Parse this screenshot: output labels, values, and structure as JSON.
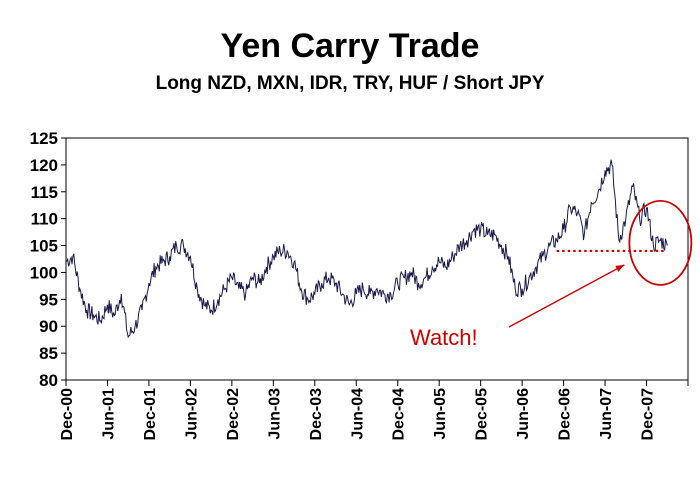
{
  "chart_data": {
    "type": "line",
    "title": "Yen Carry Trade",
    "subtitle": "Long NZD, MXN, IDR, TRY, HUF / Short JPY",
    "xlabel": "",
    "ylabel": "",
    "ylim": [
      80,
      125
    ],
    "yticks": [
      80,
      85,
      90,
      95,
      100,
      105,
      110,
      115,
      120,
      125
    ],
    "xlim": [
      "Dec-00",
      "Jun-08"
    ],
    "xticks": [
      "Dec-00",
      "Jun-01",
      "Dec-01",
      "Jun-02",
      "Dec-02",
      "Jun-03",
      "Dec-03",
      "Jun-04",
      "Dec-04",
      "Jun-05",
      "Dec-05",
      "Jun-06",
      "Dec-06",
      "Jun-07",
      "Dec-07"
    ],
    "grid": false,
    "legend": "none",
    "colors": {
      "series": "#1a1a4a",
      "annotation": "#cc0000"
    },
    "series": [
      {
        "name": "",
        "points": [
          [
            "Dec-00",
            102
          ],
          [
            "Jan-01",
            103
          ],
          [
            "Feb-01",
            97
          ],
          [
            "Mar-01",
            93
          ],
          [
            "Apr-01",
            92
          ],
          [
            "May-01",
            91
          ],
          [
            "Jun-01",
            94
          ],
          [
            "Jul-01",
            92
          ],
          [
            "Aug-01",
            96
          ],
          [
            "Sep-01",
            88
          ],
          [
            "Oct-01",
            90
          ],
          [
            "Nov-01",
            93
          ],
          [
            "Dec-01",
            98
          ],
          [
            "Jan-02",
            101
          ],
          [
            "Feb-02",
            102
          ],
          [
            "Mar-02",
            103
          ],
          [
            "Apr-02",
            105
          ],
          [
            "May-02",
            105
          ],
          [
            "Jun-02",
            103
          ],
          [
            "Jul-02",
            97
          ],
          [
            "Aug-02",
            94
          ],
          [
            "Sep-02",
            93
          ],
          [
            "Oct-02",
            95
          ],
          [
            "Nov-02",
            97
          ],
          [
            "Dec-02",
            99
          ],
          [
            "Jan-03",
            97
          ],
          [
            "Feb-03",
            96
          ],
          [
            "Mar-03",
            99
          ],
          [
            "Apr-03",
            98
          ],
          [
            "May-03",
            101
          ],
          [
            "Jun-03",
            103
          ],
          [
            "Jul-03",
            104
          ],
          [
            "Aug-03",
            104
          ],
          [
            "Sep-03",
            102
          ],
          [
            "Oct-03",
            97
          ],
          [
            "Nov-03",
            95
          ],
          [
            "Dec-03",
            96
          ],
          [
            "Jan-04",
            98
          ],
          [
            "Feb-04",
            99
          ],
          [
            "Mar-04",
            98
          ],
          [
            "Apr-04",
            96
          ],
          [
            "May-04",
            94
          ],
          [
            "Jun-04",
            96
          ],
          [
            "Jul-04",
            97
          ],
          [
            "Aug-04",
            96
          ],
          [
            "Sep-04",
            97
          ],
          [
            "Oct-04",
            96
          ],
          [
            "Nov-04",
            96
          ],
          [
            "Dec-04",
            98
          ],
          [
            "Jan-05",
            99
          ],
          [
            "Feb-05",
            100
          ],
          [
            "Mar-05",
            98
          ],
          [
            "Apr-05",
            99
          ],
          [
            "May-05",
            101
          ],
          [
            "Jun-05",
            102
          ],
          [
            "Jul-05",
            101
          ],
          [
            "Aug-05",
            103
          ],
          [
            "Sep-05",
            105
          ],
          [
            "Oct-05",
            106
          ],
          [
            "Nov-05",
            108
          ],
          [
            "Dec-05",
            108
          ],
          [
            "Jan-06",
            107
          ],
          [
            "Feb-06",
            107
          ],
          [
            "Mar-06",
            105
          ],
          [
            "Apr-06",
            103
          ],
          [
            "May-06",
            97
          ],
          [
            "Jun-06",
            97
          ],
          [
            "Jul-06",
            99
          ],
          [
            "Aug-06",
            101
          ],
          [
            "Sep-06",
            103
          ],
          [
            "Oct-06",
            105
          ],
          [
            "Nov-06",
            106
          ],
          [
            "Dec-06",
            108
          ],
          [
            "Jan-07",
            112
          ],
          [
            "Feb-07",
            111
          ],
          [
            "Mar-07",
            107
          ],
          [
            "Apr-07",
            113
          ],
          [
            "May-07",
            115
          ],
          [
            "Jun-07",
            119
          ],
          [
            "Jul-07",
            120
          ],
          [
            "Aug-07",
            106
          ],
          [
            "Sep-07",
            110
          ],
          [
            "Oct-07",
            116
          ],
          [
            "Nov-07",
            110
          ],
          [
            "Dec-07",
            112
          ],
          [
            "Jan-08",
            105
          ],
          [
            "Feb-08",
            106
          ],
          [
            "Mar-08",
            105
          ]
        ]
      }
    ],
    "annotations": [
      {
        "text": "Watch!",
        "color": "#cc0000"
      },
      {
        "type": "dotted-line",
        "from": "Nov-06",
        "to": "Jun-08",
        "y": 104
      },
      {
        "type": "ellipse",
        "center_x": "Feb-08",
        "center_y": 105.5
      }
    ]
  }
}
